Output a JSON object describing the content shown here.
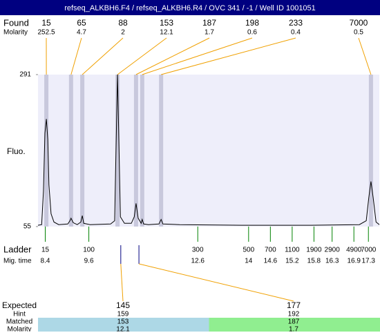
{
  "chart_data": {
    "type": "electropherogram",
    "title": "refseq_ALKBH6.F4 / refseq_ALKBH6.R4 / OVC 341 / -1 / Well ID 1001051",
    "ylabel": "Fluo.",
    "ylim": [
      55,
      291
    ],
    "yticks": [
      55,
      291
    ],
    "xlim": [
      8.2,
      17.6
    ],
    "xlabel": "Mig. time",
    "xticks": [
      8.4,
      9.6,
      12.6,
      14,
      14.6,
      15.2,
      15.8,
      16.3,
      16.9,
      17.3
    ],
    "ladder_label": "Ladder",
    "ladder": [
      15,
      100,
      300,
      500,
      700,
      1100,
      1900,
      2900,
      4900,
      7000
    ],
    "found_label": "Found",
    "found_sublabel": "Molarity",
    "found": {
      "sizes": [
        15,
        65,
        88,
        153,
        187,
        198,
        233,
        7000
      ],
      "molarity": [
        252.5,
        4.7,
        2,
        12.1,
        1.7,
        0.6,
        0.4,
        0.5
      ],
      "times": [
        8.43,
        9.11,
        9.42,
        10.39,
        10.9,
        11.07,
        11.59,
        17.37
      ]
    },
    "expected_labels": [
      "Expected",
      "Hint",
      "Matched",
      "Molarity"
    ],
    "expected": {
      "sizes": [
        145,
        177
      ],
      "hint": [
        159,
        192
      ],
      "matched": [
        153,
        187
      ],
      "molarity": [
        12.1,
        1.7
      ],
      "times": [
        10.48,
        10.98
      ],
      "colors": [
        "#add8e6",
        "#90ee90"
      ]
    },
    "trace": {
      "color": "#000000",
      "x": [
        8.2,
        8.3,
        8.35,
        8.39,
        8.43,
        8.47,
        8.5,
        8.56,
        8.64,
        8.77,
        9.02,
        9.08,
        9.11,
        9.17,
        9.28,
        9.38,
        9.42,
        9.46,
        9.63,
        10.2,
        10.31,
        10.35,
        10.39,
        10.43,
        10.47,
        10.58,
        10.77,
        10.85,
        10.9,
        10.96,
        11.04,
        11.07,
        11.11,
        11.24,
        11.53,
        11.59,
        11.64,
        12.1,
        13.81,
        15.72,
        17.05,
        17.24,
        17.31,
        17.37,
        17.43,
        17.51,
        17.6
      ],
      "y": [
        57,
        58,
        110,
        200,
        222,
        190,
        120,
        75,
        62,
        58,
        59,
        64,
        68,
        61,
        58,
        62,
        72,
        60,
        58,
        59,
        64,
        180,
        291,
        180,
        70,
        60,
        60,
        70,
        91,
        68,
        60,
        66,
        59,
        58,
        59,
        66,
        59,
        58,
        57,
        57,
        58,
        64,
        100,
        125,
        100,
        62,
        58
      ]
    }
  }
}
